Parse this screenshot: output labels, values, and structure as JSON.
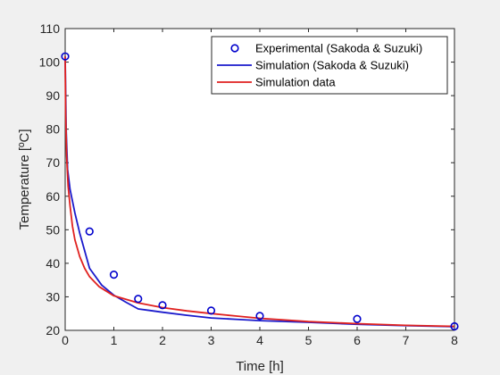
{
  "chart_data": {
    "type": "line",
    "xlabel": "Time [h]",
    "ylabel": "Temperature [ºC]",
    "xlim": [
      0,
      8
    ],
    "ylim": [
      20,
      110
    ],
    "xticks": [
      0,
      1,
      2,
      3,
      4,
      5,
      6,
      7,
      8
    ],
    "yticks": [
      20,
      30,
      40,
      50,
      60,
      70,
      80,
      90,
      100,
      110
    ],
    "grid": false,
    "legend_position": "top-right",
    "series": [
      {
        "name": "Experimental (Sakoda & Suzuki)",
        "style": "markers",
        "color": "#0000cc",
        "x": [
          0,
          0.5,
          1,
          1.5,
          2,
          3,
          4,
          6,
          8
        ],
        "y": [
          101.7,
          49.5,
          36.6,
          29.4,
          27.5,
          25.9,
          24.3,
          23.4,
          21.2
        ]
      },
      {
        "name": "Simulation (Sakoda & Suzuki)",
        "style": "line",
        "color": "#1a1acc",
        "x": [
          0,
          0.02,
          0.05,
          0.1,
          0.2,
          0.3,
          0.5,
          0.75,
          1,
          1.25,
          1.5,
          1.75,
          2,
          2.5,
          3,
          3.5,
          4,
          5,
          6,
          7,
          8
        ],
        "y": [
          101.7,
          80,
          68,
          62,
          55,
          49,
          38.5,
          33.5,
          30.5,
          28.4,
          26.4,
          25.9,
          25.4,
          24.5,
          23.7,
          23.3,
          22.9,
          22.4,
          21.8,
          21.4,
          21.1
        ]
      },
      {
        "name": "Simulation data",
        "style": "line",
        "color": "#e0211f",
        "x": [
          0,
          0.01,
          0.03,
          0.06,
          0.1,
          0.15,
          0.2,
          0.3,
          0.4,
          0.5,
          0.7,
          1,
          1.5,
          2,
          2.5,
          3,
          3.5,
          4,
          5,
          6,
          7,
          8
        ],
        "y": [
          101.7,
          85,
          72,
          63,
          57,
          51,
          47,
          42,
          38.5,
          36,
          33,
          30.3,
          28.2,
          26.8,
          25.8,
          25,
          24.3,
          23.6,
          22.6,
          22,
          21.5,
          21.2
        ]
      }
    ]
  }
}
